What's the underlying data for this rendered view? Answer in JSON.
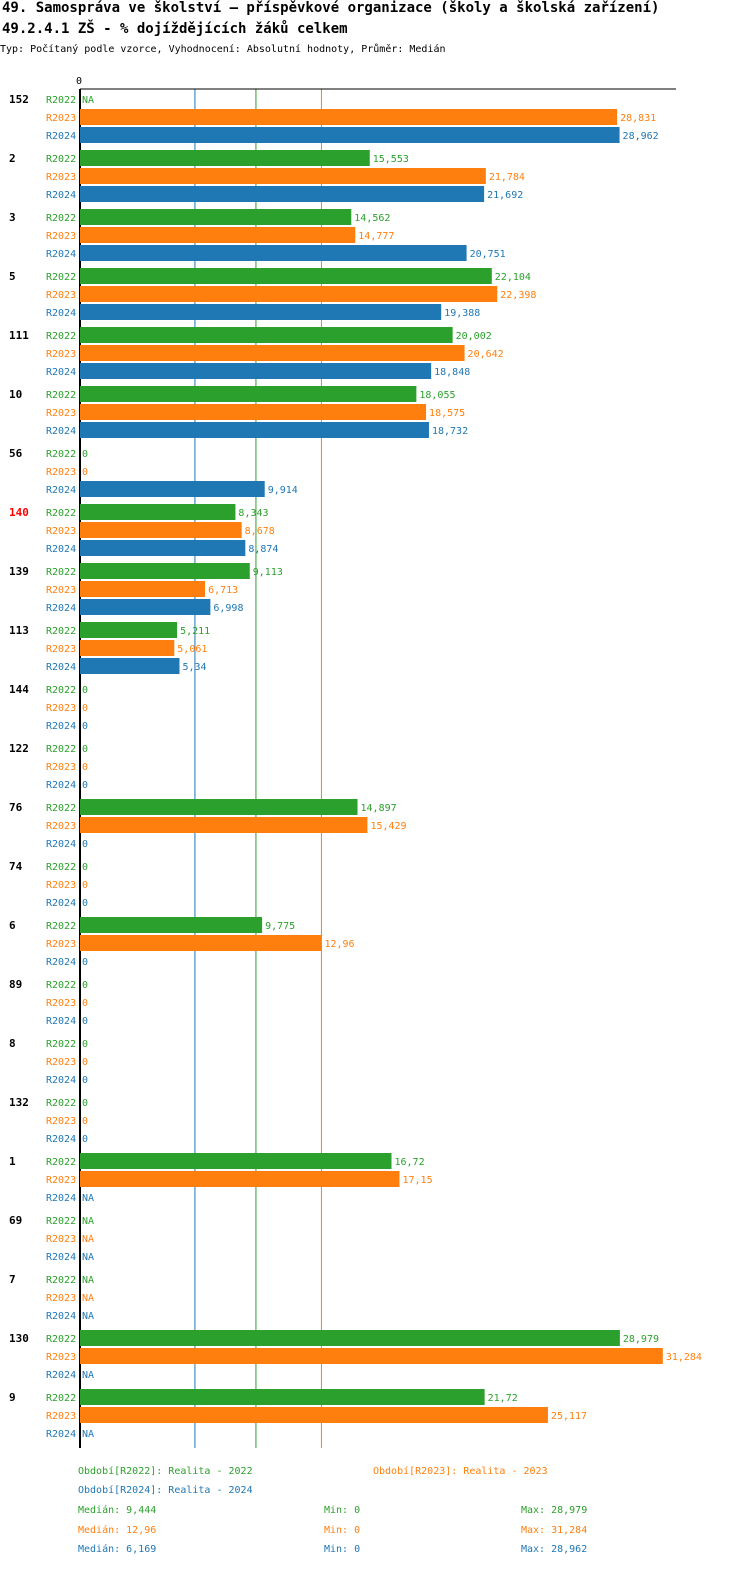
{
  "header": {
    "title": "49. Samospráva ve školství – příspěvkové organizace (školy a školská zařízení)",
    "subtitle": "49.2.4.1 ZŠ - % dojíždějících žáků celkem",
    "info": "Typ: Počítaný podle vzorce, Vyhodnocení: Absolutní hodnoty, Průměr: Medián"
  },
  "colors": {
    "R2022": "#2ca02c",
    "R2023": "#ff7f0e",
    "R2024": "#1f77b4",
    "highlight": "#ff0000",
    "axis": "#000000"
  },
  "chart_data": {
    "type": "bar",
    "orientation": "horizontal",
    "axis_origin_label": "0",
    "xlim": [
      0,
      32
    ],
    "series_names": [
      "R2022",
      "R2023",
      "R2024"
    ],
    "highlight_group": "140",
    "groups": [
      {
        "name": "152",
        "values": [
          null,
          28.831,
          28.962
        ],
        "labels": [
          "NA",
          "28,831",
          "28,962"
        ]
      },
      {
        "name": "2",
        "values": [
          15.553,
          21.784,
          21.692
        ],
        "labels": [
          "15,553",
          "21,784",
          "21,692"
        ]
      },
      {
        "name": "3",
        "values": [
          14.562,
          14.777,
          20.751
        ],
        "labels": [
          "14,562",
          "14,777",
          "20,751"
        ]
      },
      {
        "name": "5",
        "values": [
          22.104,
          22.398,
          19.388
        ],
        "labels": [
          "22,104",
          "22,398",
          "19,388"
        ]
      },
      {
        "name": "111",
        "values": [
          20.002,
          20.642,
          18.848
        ],
        "labels": [
          "20,002",
          "20,642",
          "18,848"
        ]
      },
      {
        "name": "10",
        "values": [
          18.055,
          18.575,
          18.732
        ],
        "labels": [
          "18,055",
          "18,575",
          "18,732"
        ]
      },
      {
        "name": "56",
        "values": [
          0,
          0,
          9.914
        ],
        "labels": [
          "0",
          "0",
          "9,914"
        ]
      },
      {
        "name": "140",
        "values": [
          8.343,
          8.678,
          8.874
        ],
        "labels": [
          "8,343",
          "8,678",
          "8,874"
        ]
      },
      {
        "name": "139",
        "values": [
          9.113,
          6.713,
          6.998
        ],
        "labels": [
          "9,113",
          "6,713",
          "6,998"
        ]
      },
      {
        "name": "113",
        "values": [
          5.211,
          5.061,
          5.34
        ],
        "labels": [
          "5,211",
          "5,061",
          "5,34"
        ]
      },
      {
        "name": "144",
        "values": [
          0,
          0,
          0
        ],
        "labels": [
          "0",
          "0",
          "0"
        ]
      },
      {
        "name": "122",
        "values": [
          0,
          0,
          0
        ],
        "labels": [
          "0",
          "0",
          "0"
        ]
      },
      {
        "name": "76",
        "values": [
          14.897,
          15.429,
          0
        ],
        "labels": [
          "14,897",
          "15,429",
          "0"
        ]
      },
      {
        "name": "74",
        "values": [
          0,
          0,
          0
        ],
        "labels": [
          "0",
          "0",
          "0"
        ]
      },
      {
        "name": "6",
        "values": [
          9.775,
          12.96,
          0
        ],
        "labels": [
          "9,775",
          "12,96",
          "0"
        ]
      },
      {
        "name": "89",
        "values": [
          0,
          0,
          0
        ],
        "labels": [
          "0",
          "0",
          "0"
        ]
      },
      {
        "name": "8",
        "values": [
          0,
          0,
          0
        ],
        "labels": [
          "0",
          "0",
          "0"
        ]
      },
      {
        "name": "132",
        "values": [
          0,
          0,
          0
        ],
        "labels": [
          "0",
          "0",
          "0"
        ]
      },
      {
        "name": "1",
        "values": [
          16.72,
          17.15,
          null
        ],
        "labels": [
          "16,72",
          "17,15",
          "NA"
        ]
      },
      {
        "name": "69",
        "values": [
          null,
          null,
          null
        ],
        "labels": [
          "NA",
          "NA",
          "NA"
        ]
      },
      {
        "name": "7",
        "values": [
          null,
          null,
          null
        ],
        "labels": [
          "NA",
          "NA",
          "NA"
        ]
      },
      {
        "name": "130",
        "values": [
          28.979,
          31.284,
          null
        ],
        "labels": [
          "28,979",
          "31,284",
          "NA"
        ]
      },
      {
        "name": "9",
        "values": [
          21.72,
          25.117,
          null
        ],
        "labels": [
          "21,72",
          "25,117",
          "NA"
        ]
      }
    ],
    "median_lines": [
      {
        "series": "R2024",
        "value": 6.169
      },
      {
        "series": "R2022",
        "value": 9.444
      },
      {
        "series": "R2023",
        "value": 12.96
      }
    ]
  },
  "legend": {
    "r2022": "Období[R2022]: Realita - 2022",
    "r2023": "Období[R2023]: Realita - 2023",
    "r2024": "Období[R2024]: Realita - 2024"
  },
  "stats": {
    "r2022": {
      "median": "Medián: 9,444",
      "min": "Min: 0",
      "max": "Max: 28,979"
    },
    "r2023": {
      "median": "Medián: 12,96",
      "min": "Min: 0",
      "max": "Max: 31,284"
    },
    "r2024": {
      "median": "Medián: 6,169",
      "min": "Min: 0",
      "max": "Max: 28,962"
    }
  }
}
